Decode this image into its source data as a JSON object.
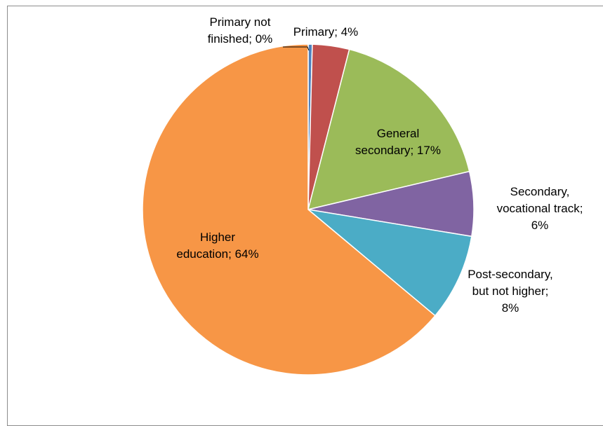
{
  "chart_data": {
    "type": "pie",
    "title": "",
    "legend": "none",
    "slices": [
      {
        "label": "Primary not finished",
        "value": 0.4,
        "display": "0%",
        "color": "#4f81bd"
      },
      {
        "label": "Primary",
        "value": 3.6,
        "display": "4%",
        "color": "#c0504d"
      },
      {
        "label": "General secondary",
        "value": 17.3,
        "display": "17%",
        "color": "#9bbb59"
      },
      {
        "label": "Secondary, vocational track",
        "value": 6.3,
        "display": "6%",
        "color": "#8064a2"
      },
      {
        "label": "Post-secondary, but not higher",
        "value": 8.5,
        "display": "8%",
        "color": "#4bacc6"
      },
      {
        "label": "Higher education",
        "value": 63.9,
        "display": "64%",
        "color": "#f79646"
      }
    ],
    "data_labels": [
      {
        "lines": [
          "Primary not",
          "finished; 0%"
        ]
      },
      {
        "lines": [
          "Primary; 4%"
        ]
      },
      {
        "lines": [
          "General",
          "secondary; 17%"
        ]
      },
      {
        "lines": [
          "Secondary,",
          "vocational track;",
          "6%"
        ]
      },
      {
        "lines": [
          "Post-secondary,",
          "but not higher;",
          "8%"
        ]
      },
      {
        "lines": [
          "Higher",
          "education; 64%"
        ]
      }
    ]
  }
}
